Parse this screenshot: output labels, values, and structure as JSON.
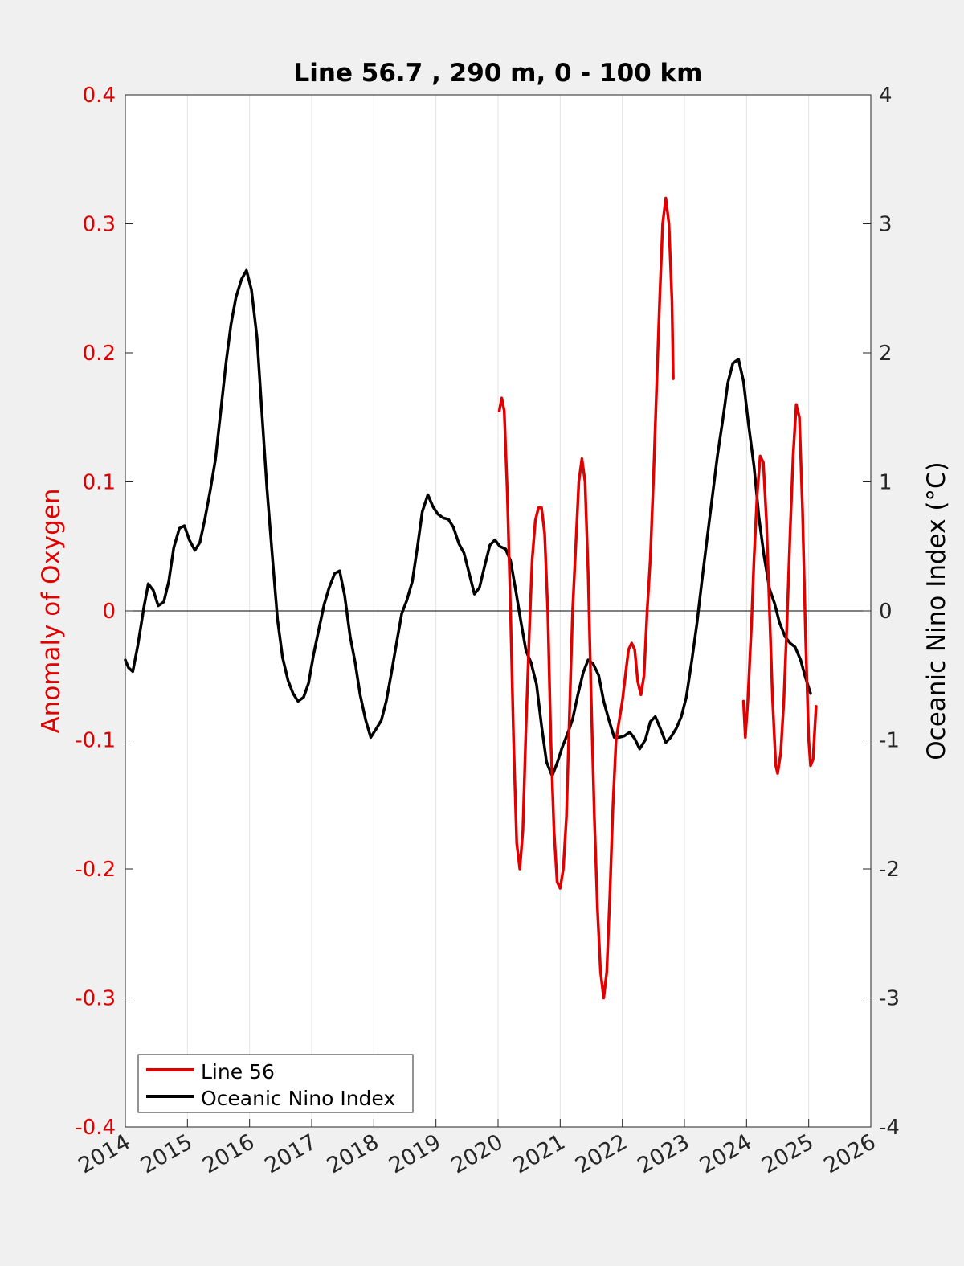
{
  "chart_data": {
    "type": "line",
    "title": "Line 56.7 , 290 m, 0 - 100 km",
    "xlabel": "",
    "ylabel_left": "Anomaly of Oxygen",
    "ylabel_right": "Oceanic Nino Index (°C)",
    "xlim": [
      2014,
      2026
    ],
    "ylim_left": [
      -0.4,
      0.4
    ],
    "ylim_right": [
      -4,
      4
    ],
    "x_ticks": [
      "2014",
      "2015",
      "2016",
      "2017",
      "2018",
      "2019",
      "2020",
      "2021",
      "2022",
      "2023",
      "2024",
      "2025",
      "2026"
    ],
    "y_ticks_left": [
      "-0.4",
      "-0.3",
      "-0.2",
      "-0.1",
      "0",
      "0.1",
      "0.2",
      "0.3",
      "0.4"
    ],
    "y_ticks_right": [
      "-4",
      "-3",
      "-2",
      "-1",
      "0",
      "1",
      "2",
      "3",
      "4"
    ],
    "grid": "vertical",
    "legend_position": "bottom-left",
    "colors": {
      "left_axis": "#e00000",
      "line56": "#e00000",
      "oni": "#000000"
    },
    "series": [
      {
        "name": "Line 56",
        "axis": "left",
        "segments": [
          [
            [
              2020.02,
              0.155
            ],
            [
              2020.06,
              0.165
            ],
            [
              2020.1,
              0.155
            ],
            [
              2020.15,
              0.09
            ],
            [
              2020.2,
              0.0
            ],
            [
              2020.25,
              -0.1
            ],
            [
              2020.3,
              -0.18
            ],
            [
              2020.35,
              -0.2
            ],
            [
              2020.4,
              -0.17
            ],
            [
              2020.45,
              -0.09
            ],
            [
              2020.5,
              -0.02
            ],
            [
              2020.55,
              0.04
            ],
            [
              2020.6,
              0.07
            ],
            [
              2020.65,
              0.08
            ],
            [
              2020.7,
              0.08
            ],
            [
              2020.75,
              0.06
            ],
            [
              2020.8,
              0.0
            ],
            [
              2020.85,
              -0.1
            ],
            [
              2020.9,
              -0.17
            ],
            [
              2020.95,
              -0.21
            ],
            [
              2021.0,
              -0.215
            ],
            [
              2021.05,
              -0.2
            ],
            [
              2021.1,
              -0.16
            ],
            [
              2021.15,
              -0.08
            ],
            [
              2021.2,
              0.0
            ],
            [
              2021.25,
              0.05
            ],
            [
              2021.3,
              0.1
            ],
            [
              2021.35,
              0.118
            ],
            [
              2021.4,
              0.1
            ],
            [
              2021.45,
              0.03
            ],
            [
              2021.5,
              -0.07
            ],
            [
              2021.55,
              -0.16
            ],
            [
              2021.6,
              -0.23
            ],
            [
              2021.65,
              -0.28
            ],
            [
              2021.7,
              -0.3
            ],
            [
              2021.75,
              -0.28
            ],
            [
              2021.8,
              -0.22
            ],
            [
              2021.85,
              -0.15
            ],
            [
              2021.9,
              -0.1
            ],
            [
              2021.95,
              -0.085
            ],
            [
              2022.0,
              -0.07
            ],
            [
              2022.05,
              -0.05
            ],
            [
              2022.1,
              -0.03
            ],
            [
              2022.15,
              -0.025
            ],
            [
              2022.2,
              -0.03
            ],
            [
              2022.25,
              -0.055
            ],
            [
              2022.3,
              -0.065
            ],
            [
              2022.35,
              -0.05
            ],
            [
              2022.4,
              0.0
            ],
            [
              2022.45,
              0.04
            ],
            [
              2022.5,
              0.1
            ],
            [
              2022.55,
              0.17
            ],
            [
              2022.6,
              0.24
            ],
            [
              2022.65,
              0.3
            ],
            [
              2022.7,
              0.32
            ],
            [
              2022.75,
              0.3
            ],
            [
              2022.8,
              0.24
            ],
            [
              2022.82,
              0.18
            ]
          ],
          [
            [
              2023.95,
              -0.07
            ],
            [
              2023.98,
              -0.098
            ],
            [
              2024.02,
              -0.07
            ],
            [
              2024.08,
              -0.01
            ],
            [
              2024.12,
              0.04
            ],
            [
              2024.17,
              0.09
            ],
            [
              2024.22,
              0.12
            ],
            [
              2024.27,
              0.115
            ],
            [
              2024.32,
              0.07
            ],
            [
              2024.37,
              0.0
            ],
            [
              2024.42,
              -0.07
            ],
            [
              2024.47,
              -0.12
            ],
            [
              2024.5,
              -0.126
            ],
            [
              2024.55,
              -0.11
            ],
            [
              2024.6,
              -0.07
            ],
            [
              2024.65,
              -0.01
            ],
            [
              2024.7,
              0.06
            ],
            [
              2024.75,
              0.12
            ],
            [
              2024.8,
              0.16
            ],
            [
              2024.85,
              0.15
            ],
            [
              2024.9,
              0.08
            ],
            [
              2024.95,
              -0.02
            ],
            [
              2025.0,
              -0.1
            ],
            [
              2025.03,
              -0.12
            ],
            [
              2025.07,
              -0.115
            ],
            [
              2025.1,
              -0.09
            ],
            [
              2025.12,
              -0.074
            ]
          ]
        ]
      },
      {
        "name": "Oceanic Nino Index",
        "axis": "right",
        "points": [
          [
            2014.0,
            -0.38
          ],
          [
            2014.05,
            -0.44
          ],
          [
            2014.12,
            -0.47
          ],
          [
            2014.2,
            -0.27
          ],
          [
            2014.3,
            0.03
          ],
          [
            2014.37,
            0.21
          ],
          [
            2014.45,
            0.16
          ],
          [
            2014.53,
            0.04
          ],
          [
            2014.62,
            0.07
          ],
          [
            2014.7,
            0.23
          ],
          [
            2014.78,
            0.49
          ],
          [
            2014.87,
            0.64
          ],
          [
            2014.95,
            0.66
          ],
          [
            2015.03,
            0.55
          ],
          [
            2015.12,
            0.47
          ],
          [
            2015.2,
            0.53
          ],
          [
            2015.28,
            0.71
          ],
          [
            2015.37,
            0.94
          ],
          [
            2015.45,
            1.17
          ],
          [
            2015.53,
            1.52
          ],
          [
            2015.62,
            1.92
          ],
          [
            2015.7,
            2.22
          ],
          [
            2015.78,
            2.43
          ],
          [
            2015.87,
            2.57
          ],
          [
            2015.95,
            2.64
          ],
          [
            2016.03,
            2.49
          ],
          [
            2016.12,
            2.12
          ],
          [
            2016.2,
            1.53
          ],
          [
            2016.28,
            0.95
          ],
          [
            2016.37,
            0.4
          ],
          [
            2016.45,
            -0.07
          ],
          [
            2016.53,
            -0.36
          ],
          [
            2016.62,
            -0.54
          ],
          [
            2016.7,
            -0.64
          ],
          [
            2016.78,
            -0.7
          ],
          [
            2016.87,
            -0.67
          ],
          [
            2016.95,
            -0.56
          ],
          [
            2017.03,
            -0.34
          ],
          [
            2017.12,
            -0.13
          ],
          [
            2017.2,
            0.05
          ],
          [
            2017.28,
            0.18
          ],
          [
            2017.37,
            0.29
          ],
          [
            2017.45,
            0.31
          ],
          [
            2017.53,
            0.12
          ],
          [
            2017.62,
            -0.2
          ],
          [
            2017.7,
            -0.4
          ],
          [
            2017.78,
            -0.65
          ],
          [
            2017.87,
            -0.85
          ],
          [
            2017.95,
            -0.98
          ],
          [
            2018.03,
            -0.92
          ],
          [
            2018.12,
            -0.85
          ],
          [
            2018.2,
            -0.7
          ],
          [
            2018.28,
            -0.49
          ],
          [
            2018.37,
            -0.24
          ],
          [
            2018.45,
            -0.02
          ],
          [
            2018.53,
            0.08
          ],
          [
            2018.62,
            0.23
          ],
          [
            2018.7,
            0.49
          ],
          [
            2018.78,
            0.77
          ],
          [
            2018.87,
            0.9
          ],
          [
            2018.95,
            0.81
          ],
          [
            2019.03,
            0.75
          ],
          [
            2019.12,
            0.72
          ],
          [
            2019.2,
            0.71
          ],
          [
            2019.28,
            0.65
          ],
          [
            2019.37,
            0.52
          ],
          [
            2019.45,
            0.45
          ],
          [
            2019.53,
            0.3
          ],
          [
            2019.62,
            0.13
          ],
          [
            2019.7,
            0.18
          ],
          [
            2019.78,
            0.34
          ],
          [
            2019.87,
            0.51
          ],
          [
            2019.95,
            0.55
          ],
          [
            2020.03,
            0.5
          ],
          [
            2020.12,
            0.48
          ],
          [
            2020.2,
            0.39
          ],
          [
            2020.28,
            0.17
          ],
          [
            2020.37,
            -0.09
          ],
          [
            2020.45,
            -0.31
          ],
          [
            2020.53,
            -0.4
          ],
          [
            2020.62,
            -0.57
          ],
          [
            2020.7,
            -0.89
          ],
          [
            2020.78,
            -1.17
          ],
          [
            2020.87,
            -1.28
          ],
          [
            2020.95,
            -1.18
          ],
          [
            2021.03,
            -1.06
          ],
          [
            2021.12,
            -0.95
          ],
          [
            2021.2,
            -0.84
          ],
          [
            2021.28,
            -0.66
          ],
          [
            2021.37,
            -0.48
          ],
          [
            2021.45,
            -0.38
          ],
          [
            2021.53,
            -0.41
          ],
          [
            2021.62,
            -0.5
          ],
          [
            2021.7,
            -0.7
          ],
          [
            2021.78,
            -0.84
          ],
          [
            2021.87,
            -0.98
          ],
          [
            2021.95,
            -0.98
          ],
          [
            2022.03,
            -0.97
          ],
          [
            2022.12,
            -0.94
          ],
          [
            2022.2,
            -0.99
          ],
          [
            2022.28,
            -1.07
          ],
          [
            2022.37,
            -1.0
          ],
          [
            2022.45,
            -0.86
          ],
          [
            2022.53,
            -0.82
          ],
          [
            2022.62,
            -0.92
          ],
          [
            2022.7,
            -1.02
          ],
          [
            2022.78,
            -0.98
          ],
          [
            2022.87,
            -0.91
          ],
          [
            2022.95,
            -0.82
          ],
          [
            2023.03,
            -0.67
          ],
          [
            2023.12,
            -0.38
          ],
          [
            2023.2,
            -0.1
          ],
          [
            2023.28,
            0.23
          ],
          [
            2023.37,
            0.58
          ],
          [
            2023.45,
            0.89
          ],
          [
            2023.53,
            1.2
          ],
          [
            2023.62,
            1.49
          ],
          [
            2023.7,
            1.77
          ],
          [
            2023.78,
            1.92
          ],
          [
            2023.87,
            1.95
          ],
          [
            2023.95,
            1.78
          ],
          [
            2024.03,
            1.45
          ],
          [
            2024.12,
            1.12
          ],
          [
            2024.2,
            0.72
          ],
          [
            2024.28,
            0.43
          ],
          [
            2024.37,
            0.17
          ],
          [
            2024.45,
            0.06
          ],
          [
            2024.53,
            -0.09
          ],
          [
            2024.62,
            -0.2
          ],
          [
            2024.7,
            -0.25
          ],
          [
            2024.78,
            -0.28
          ],
          [
            2024.87,
            -0.38
          ],
          [
            2024.95,
            -0.52
          ],
          [
            2025.03,
            -0.64
          ]
        ]
      }
    ]
  }
}
